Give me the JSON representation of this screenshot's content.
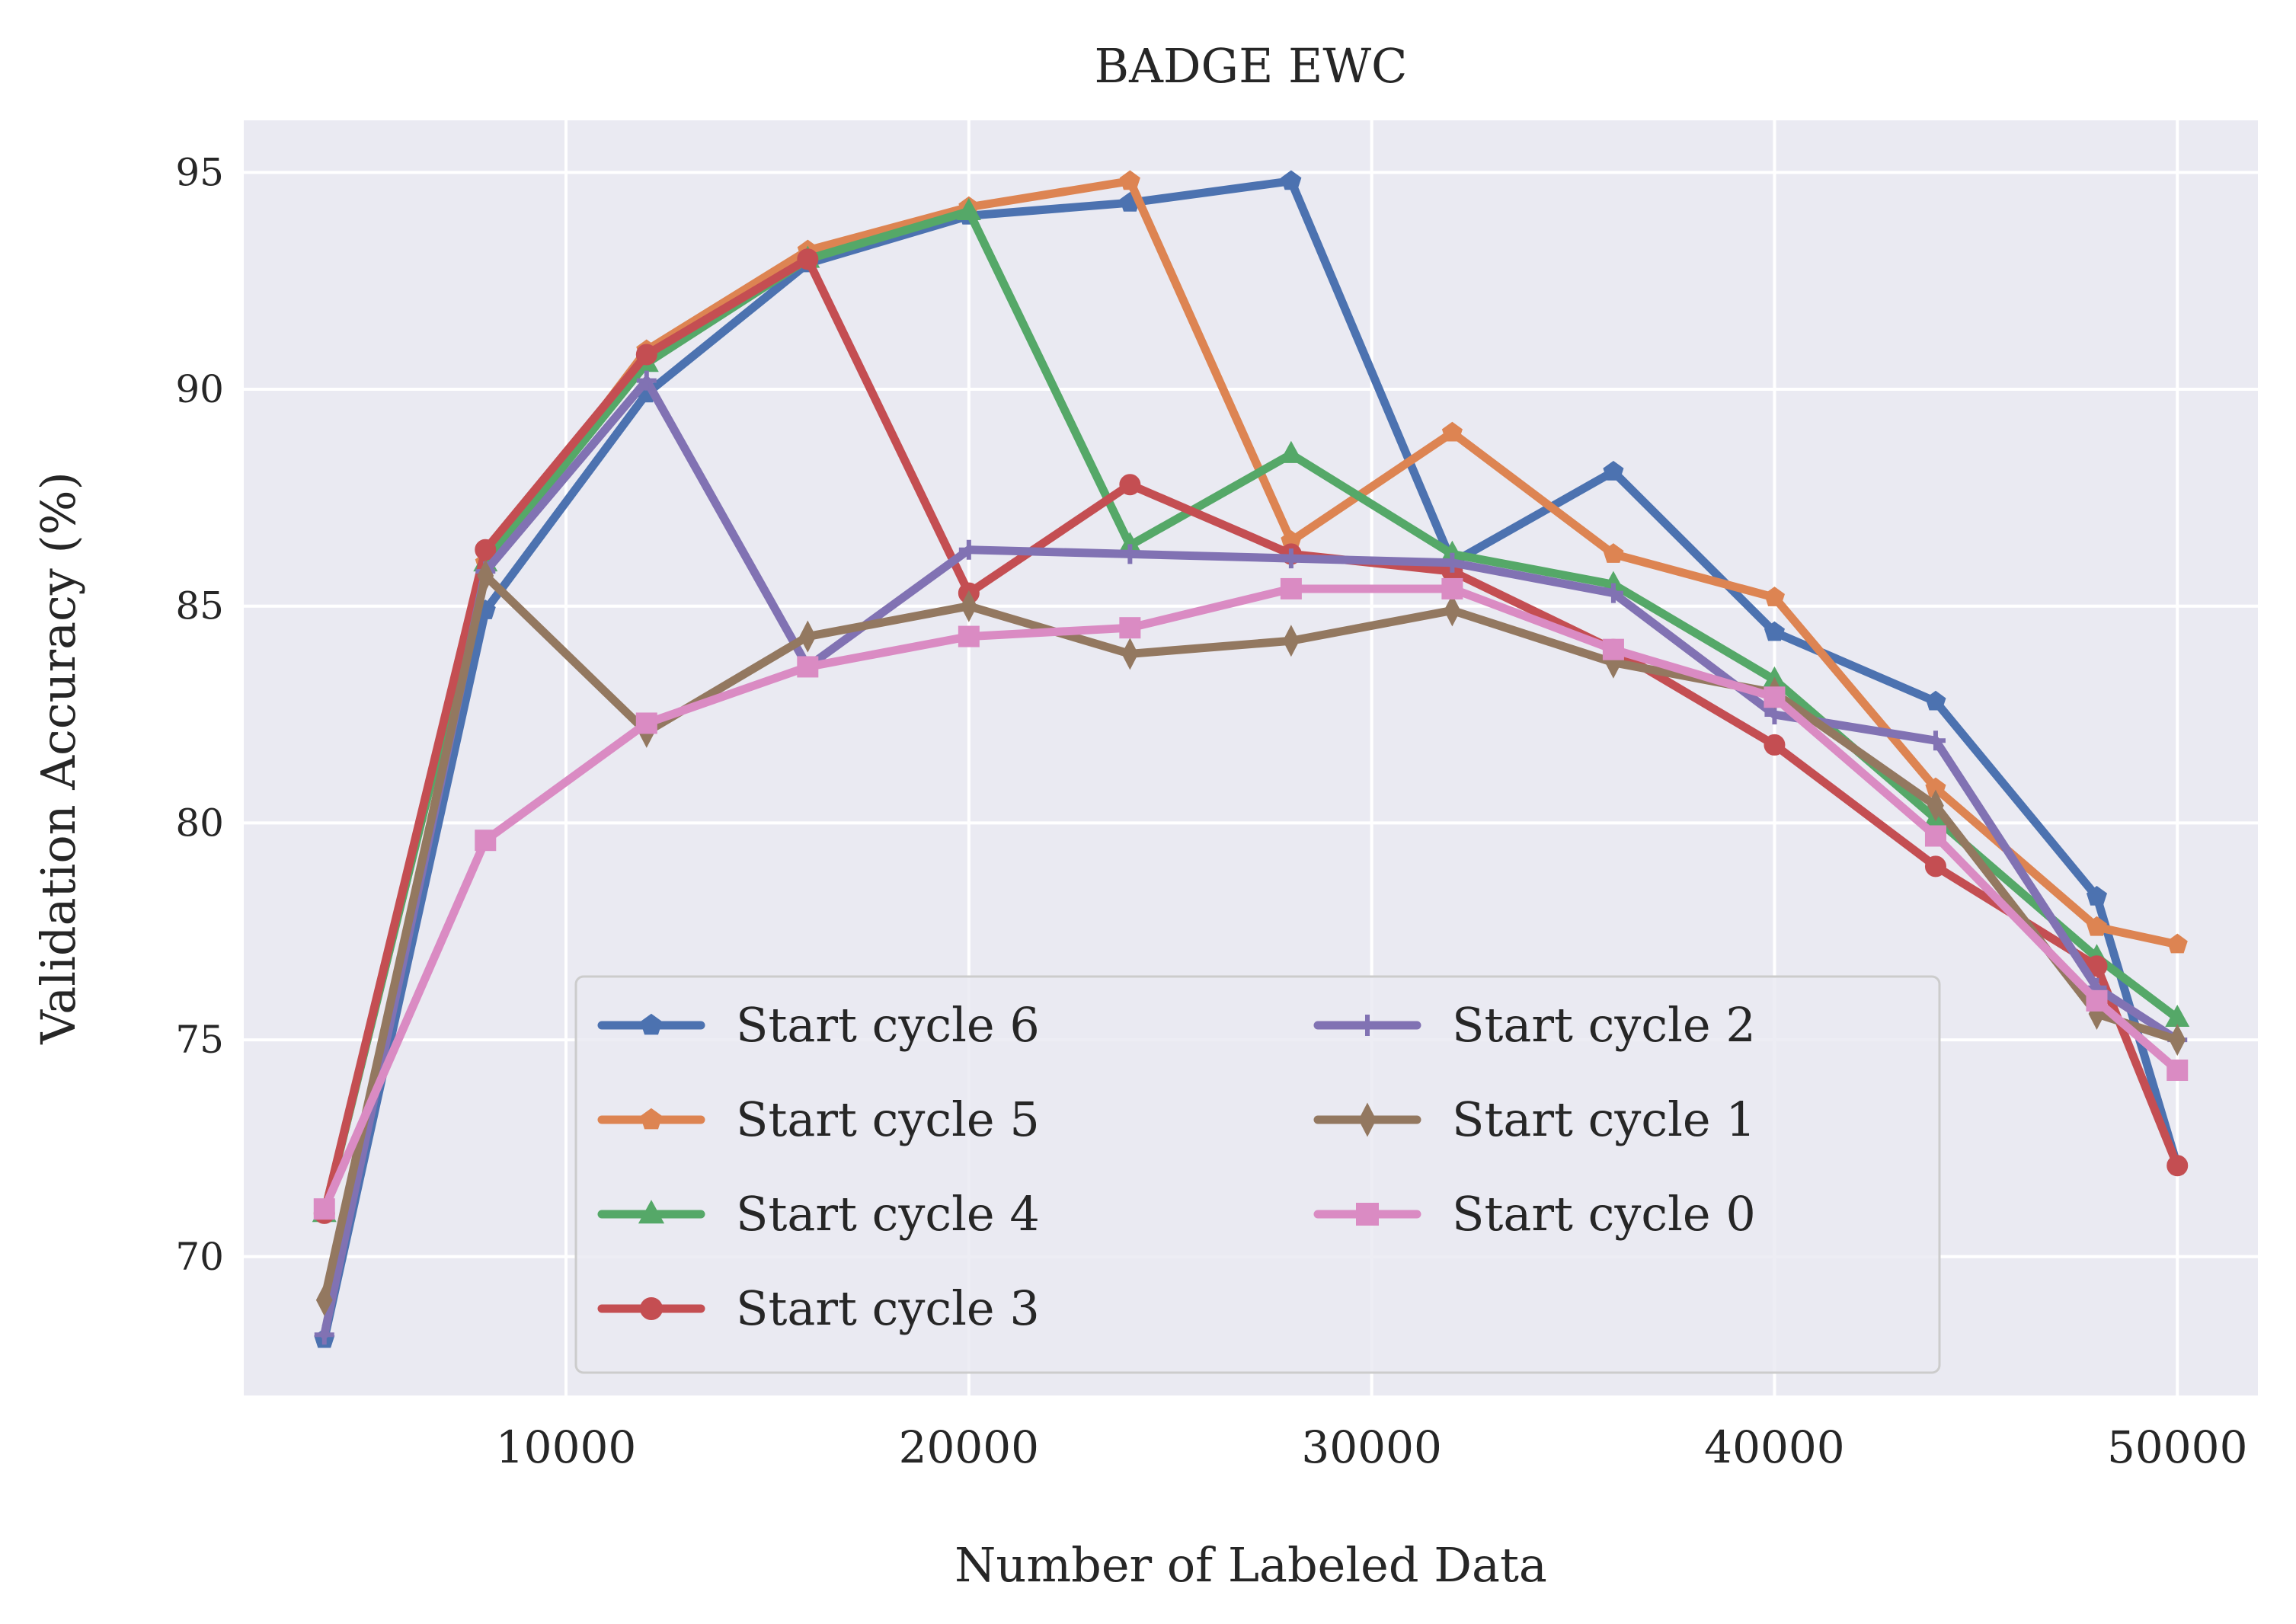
{
  "chart_data": {
    "type": "line",
    "title": "BADGE EWC",
    "xlabel": "Number of Labeled Data",
    "ylabel": "Validation Accuracy (%)",
    "xlim": [
      2000,
      52000
    ],
    "ylim": [
      66.8,
      96.2
    ],
    "xticks": [
      10000,
      20000,
      30000,
      40000,
      50000
    ],
    "yticks": [
      70,
      75,
      80,
      85,
      90,
      95
    ],
    "grid": true,
    "legend_position": "lower-center",
    "legend_columns": 2,
    "background_color": "#eaeaf2",
    "series": [
      {
        "name": "Start cycle 6",
        "color": "#4c72b0",
        "marker": "pentagon",
        "x": [
          4000,
          8000,
          12000,
          16000,
          20000,
          24000,
          28000,
          32000,
          36000,
          40000,
          44000,
          48000,
          50000
        ],
        "y": [
          68.1,
          84.9,
          89.9,
          92.9,
          94.0,
          94.3,
          94.8,
          86.0,
          88.1,
          84.4,
          82.8,
          78.3,
          72.1
        ]
      },
      {
        "name": "Start cycle 5",
        "color": "#dd8452",
        "marker": "pentagon",
        "x": [
          4000,
          8000,
          12000,
          16000,
          20000,
          24000,
          28000,
          32000,
          36000,
          40000,
          44000,
          48000,
          50000
        ],
        "y": [
          71.0,
          86.0,
          90.9,
          93.2,
          94.2,
          94.8,
          86.5,
          89.0,
          86.2,
          85.2,
          80.8,
          77.6,
          77.2
        ]
      },
      {
        "name": "Start cycle 4",
        "color": "#55a868",
        "marker": "triangle",
        "x": [
          4000,
          8000,
          12000,
          16000,
          20000,
          24000,
          28000,
          32000,
          36000,
          40000,
          44000,
          48000,
          50000
        ],
        "y": [
          71.0,
          86.0,
          90.6,
          93.0,
          94.1,
          86.4,
          88.5,
          86.2,
          85.5,
          83.3,
          80.1,
          76.9,
          75.5
        ]
      },
      {
        "name": "Start cycle 3",
        "color": "#c44e52",
        "marker": "circle",
        "x": [
          4000,
          8000,
          12000,
          16000,
          20000,
          24000,
          28000,
          32000,
          36000,
          40000,
          44000,
          48000,
          50000
        ],
        "y": [
          71.0,
          86.3,
          90.8,
          93.0,
          85.3,
          87.8,
          86.2,
          85.8,
          84.0,
          81.8,
          79.0,
          76.7,
          72.1
        ]
      },
      {
        "name": "Start cycle 2",
        "color": "#8172b3",
        "marker": "plus",
        "x": [
          4000,
          8000,
          12000,
          16000,
          20000,
          24000,
          28000,
          32000,
          36000,
          40000,
          44000,
          48000,
          50000
        ],
        "y": [
          68.2,
          85.8,
          90.2,
          83.6,
          86.3,
          86.2,
          86.1,
          86.0,
          85.3,
          82.5,
          81.9,
          76.2,
          75.0
        ]
      },
      {
        "name": "Start cycle 1",
        "color": "#937860",
        "marker": "thin-diamond",
        "x": [
          4000,
          8000,
          12000,
          16000,
          20000,
          24000,
          28000,
          32000,
          36000,
          40000,
          44000,
          48000,
          50000
        ],
        "y": [
          69.0,
          85.7,
          82.1,
          84.3,
          85.0,
          83.9,
          84.2,
          84.9,
          83.7,
          83.0,
          80.4,
          75.6,
          75.0
        ]
      },
      {
        "name": "Start cycle 0",
        "color": "#da8bc3",
        "marker": "square",
        "x": [
          4000,
          8000,
          12000,
          16000,
          20000,
          24000,
          28000,
          32000,
          36000,
          40000,
          44000,
          48000,
          50000
        ],
        "y": [
          71.1,
          79.6,
          82.3,
          83.6,
          84.3,
          84.5,
          85.4,
          85.4,
          84.0,
          82.9,
          79.7,
          75.9,
          74.3
        ]
      }
    ],
    "legend_order": [
      "Start cycle 6",
      "Start cycle 5",
      "Start cycle 4",
      "Start cycle 3",
      "Start cycle 2",
      "Start cycle 1",
      "Start cycle 0"
    ]
  }
}
